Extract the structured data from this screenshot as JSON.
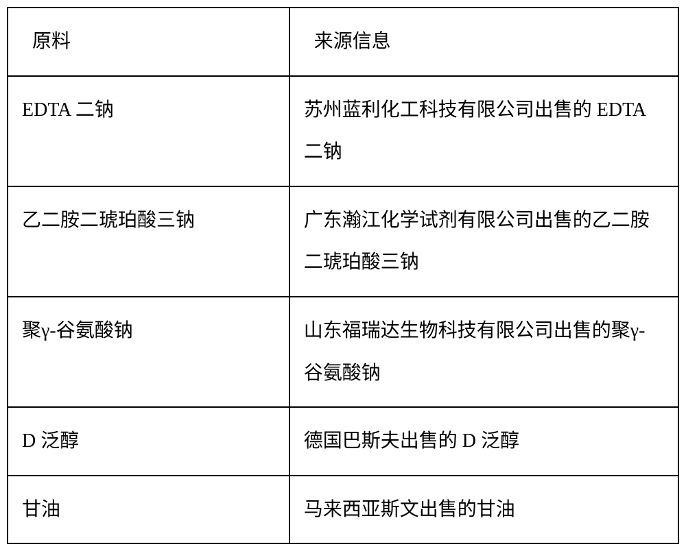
{
  "table": {
    "border_color": "#000000",
    "border_width": 2,
    "background_color": "#ffffff",
    "font_size": 28,
    "font_family": "SimSun",
    "text_color": "#000000",
    "line_height": 2.2,
    "columns": [
      {
        "key": "material",
        "label": "原料",
        "width_pct": 42
      },
      {
        "key": "source",
        "label": "来源信息",
        "width_pct": 58
      }
    ],
    "rows": [
      {
        "material": "EDTA 二钠",
        "source": "苏州蓝利化工科技有限公司出售的 EDTA 二钠"
      },
      {
        "material": "乙二胺二琥珀酸三钠",
        "source": "广东瀚江化学试剂有限公司出售的乙二胺二琥珀酸三钠"
      },
      {
        "material": "聚γ-谷氨酸钠",
        "source": "山东福瑞达生物科技有限公司出售的聚γ-谷氨酸钠"
      },
      {
        "material": "D 泛醇",
        "source": "德国巴斯夫出售的 D 泛醇"
      },
      {
        "material": "甘油",
        "source": "马来西亚斯文出售的甘油"
      }
    ]
  }
}
